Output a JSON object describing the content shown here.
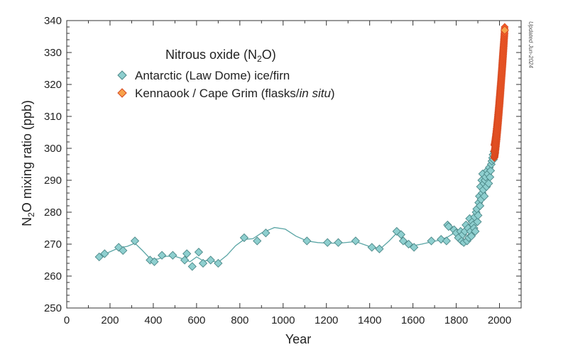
{
  "chart_data": {
    "type": "scatter",
    "title": "",
    "xlabel": "Year",
    "ylabel_main": "N",
    "ylabel_sub": "2",
    "ylabel_rest": "O mixing ratio (ppb)",
    "xlim": [
      0,
      2100
    ],
    "ylim": [
      250,
      340
    ],
    "xticks": [
      0,
      200,
      400,
      600,
      800,
      1000,
      1200,
      1400,
      1600,
      1800,
      2000
    ],
    "yticks": [
      250,
      260,
      270,
      280,
      290,
      300,
      310,
      320,
      330,
      340
    ],
    "grid": false,
    "legend_position": "top-left",
    "legend_title_main": "Nitrous oxide (N",
    "legend_title_sub": "2",
    "legend_title_end": "O)",
    "note": "Updated Jun-2024",
    "colors": {
      "ice_fill": "#8ecfcf",
      "ice_stroke": "#4e8a8a",
      "smooth_line": "#5aa5a5",
      "grim_fill": "#f05a28",
      "grim_stroke": "#d6481f",
      "grim_latest_fill": "#f7a24a"
    },
    "series": [
      {
        "name": "Antarctic (Law Dome) ice/firn",
        "marker": "diamond",
        "points": [
          [
            150,
            266
          ],
          [
            175,
            267
          ],
          [
            240,
            269
          ],
          [
            260,
            268
          ],
          [
            315,
            271
          ],
          [
            385,
            265
          ],
          [
            405,
            264.5
          ],
          [
            440,
            266.5
          ],
          [
            490,
            266.5
          ],
          [
            545,
            265
          ],
          [
            555,
            267
          ],
          [
            580,
            263
          ],
          [
            610,
            267.5
          ],
          [
            630,
            264
          ],
          [
            665,
            265
          ],
          [
            700,
            264
          ],
          [
            820,
            272
          ],
          [
            880,
            271
          ],
          [
            920,
            273.5
          ],
          [
            1110,
            271
          ],
          [
            1205,
            270.5
          ],
          [
            1255,
            270.5
          ],
          [
            1335,
            271
          ],
          [
            1410,
            269
          ],
          [
            1445,
            268.5
          ],
          [
            1525,
            274
          ],
          [
            1545,
            273
          ],
          [
            1555,
            271
          ],
          [
            1580,
            270
          ],
          [
            1605,
            269
          ],
          [
            1685,
            271
          ],
          [
            1730,
            271.5
          ],
          [
            1755,
            271
          ],
          [
            1760,
            276
          ],
          [
            1765,
            275.5
          ],
          [
            1790,
            274.5
          ],
          [
            1800,
            273.5
          ],
          [
            1810,
            272
          ],
          [
            1820,
            274
          ],
          [
            1825,
            271
          ],
          [
            1830,
            273
          ],
          [
            1835,
            270.5
          ],
          [
            1840,
            274
          ],
          [
            1845,
            276
          ],
          [
            1850,
            271
          ],
          [
            1855,
            275
          ],
          [
            1858,
            272
          ],
          [
            1862,
            278
          ],
          [
            1866,
            274
          ],
          [
            1870,
            272.5
          ],
          [
            1874,
            277
          ],
          [
            1878,
            276
          ],
          [
            1882,
            275
          ],
          [
            1885,
            278.5
          ],
          [
            1888,
            274
          ],
          [
            1892,
            280
          ],
          [
            1895,
            281
          ],
          [
            1898,
            277
          ],
          [
            1901,
            279
          ],
          [
            1904,
            283
          ],
          [
            1907,
            285
          ],
          [
            1910,
            282
          ],
          [
            1912,
            288
          ],
          [
            1915,
            284
          ],
          [
            1918,
            290
          ],
          [
            1920,
            286
          ],
          [
            1922,
            292
          ],
          [
            1925,
            287
          ],
          [
            1928,
            289
          ],
          [
            1930,
            285
          ],
          [
            1933,
            290
          ],
          [
            1936,
            291
          ],
          [
            1940,
            288
          ],
          [
            1943,
            293
          ],
          [
            1946,
            292
          ],
          [
            1950,
            289
          ],
          [
            1953,
            294
          ],
          [
            1956,
            291
          ],
          [
            1959,
            293
          ],
          [
            1962,
            295
          ],
          [
            1965,
            296
          ],
          [
            1968,
            297
          ],
          [
            1970,
            298
          ],
          [
            1972,
            296.5
          ],
          [
            1975,
            299
          ],
          [
            1978,
            298.5
          ]
        ]
      },
      {
        "name": "Kennaook / Cape Grim (flasks/in situ)",
        "name_main": "Kennaook / Cape Grim (flasks/",
        "name_italic": "in situ",
        "name_end": ")",
        "marker": "diamond",
        "x_start": 1976,
        "x_end": 2024,
        "y_start": 299,
        "y_end": 337,
        "shape_exponent": 1.3,
        "spread": [
          -2,
          0,
          2
        ],
        "latest_highlight": [
          2024,
          337
        ]
      }
    ],
    "smooth_curve": [
      [
        150,
        266
      ],
      [
        190,
        267.3
      ],
      [
        240,
        268.8
      ],
      [
        280,
        269.3
      ],
      [
        315,
        270.3
      ],
      [
        350,
        268
      ],
      [
        385,
        265.5
      ],
      [
        420,
        265.3
      ],
      [
        460,
        266.2
      ],
      [
        500,
        266.2
      ],
      [
        540,
        265.3
      ],
      [
        570,
        264.5
      ],
      [
        600,
        266
      ],
      [
        630,
        264.8
      ],
      [
        660,
        264.8
      ],
      [
        700,
        264.3
      ],
      [
        740,
        266.5
      ],
      [
        780,
        269.5
      ],
      [
        820,
        271.5
      ],
      [
        860,
        271.7
      ],
      [
        900,
        273.5
      ],
      [
        960,
        275.2
      ],
      [
        1010,
        274.7
      ],
      [
        1060,
        272.5
      ],
      [
        1110,
        271
      ],
      [
        1160,
        270.5
      ],
      [
        1205,
        270.3
      ],
      [
        1260,
        270.3
      ],
      [
        1335,
        270.8
      ],
      [
        1410,
        269
      ],
      [
        1450,
        268.6
      ],
      [
        1490,
        271
      ],
      [
        1525,
        273.5
      ],
      [
        1560,
        271.5
      ],
      [
        1600,
        269.5
      ],
      [
        1640,
        270
      ],
      [
        1685,
        270.7
      ],
      [
        1720,
        271.2
      ],
      [
        1760,
        272.2
      ],
      [
        1790,
        273.5
      ],
      [
        1820,
        274
      ],
      [
        1850,
        274.8
      ],
      [
        1870,
        276.5
      ],
      [
        1890,
        279
      ],
      [
        1910,
        283
      ],
      [
        1930,
        287.5
      ],
      [
        1950,
        290.5
      ],
      [
        1965,
        295
      ],
      [
        1975,
        299
      ],
      [
        1985,
        303
      ],
      [
        1995,
        308
      ],
      [
        2005,
        316
      ],
      [
        2015,
        327
      ],
      [
        2024,
        337
      ]
    ]
  }
}
